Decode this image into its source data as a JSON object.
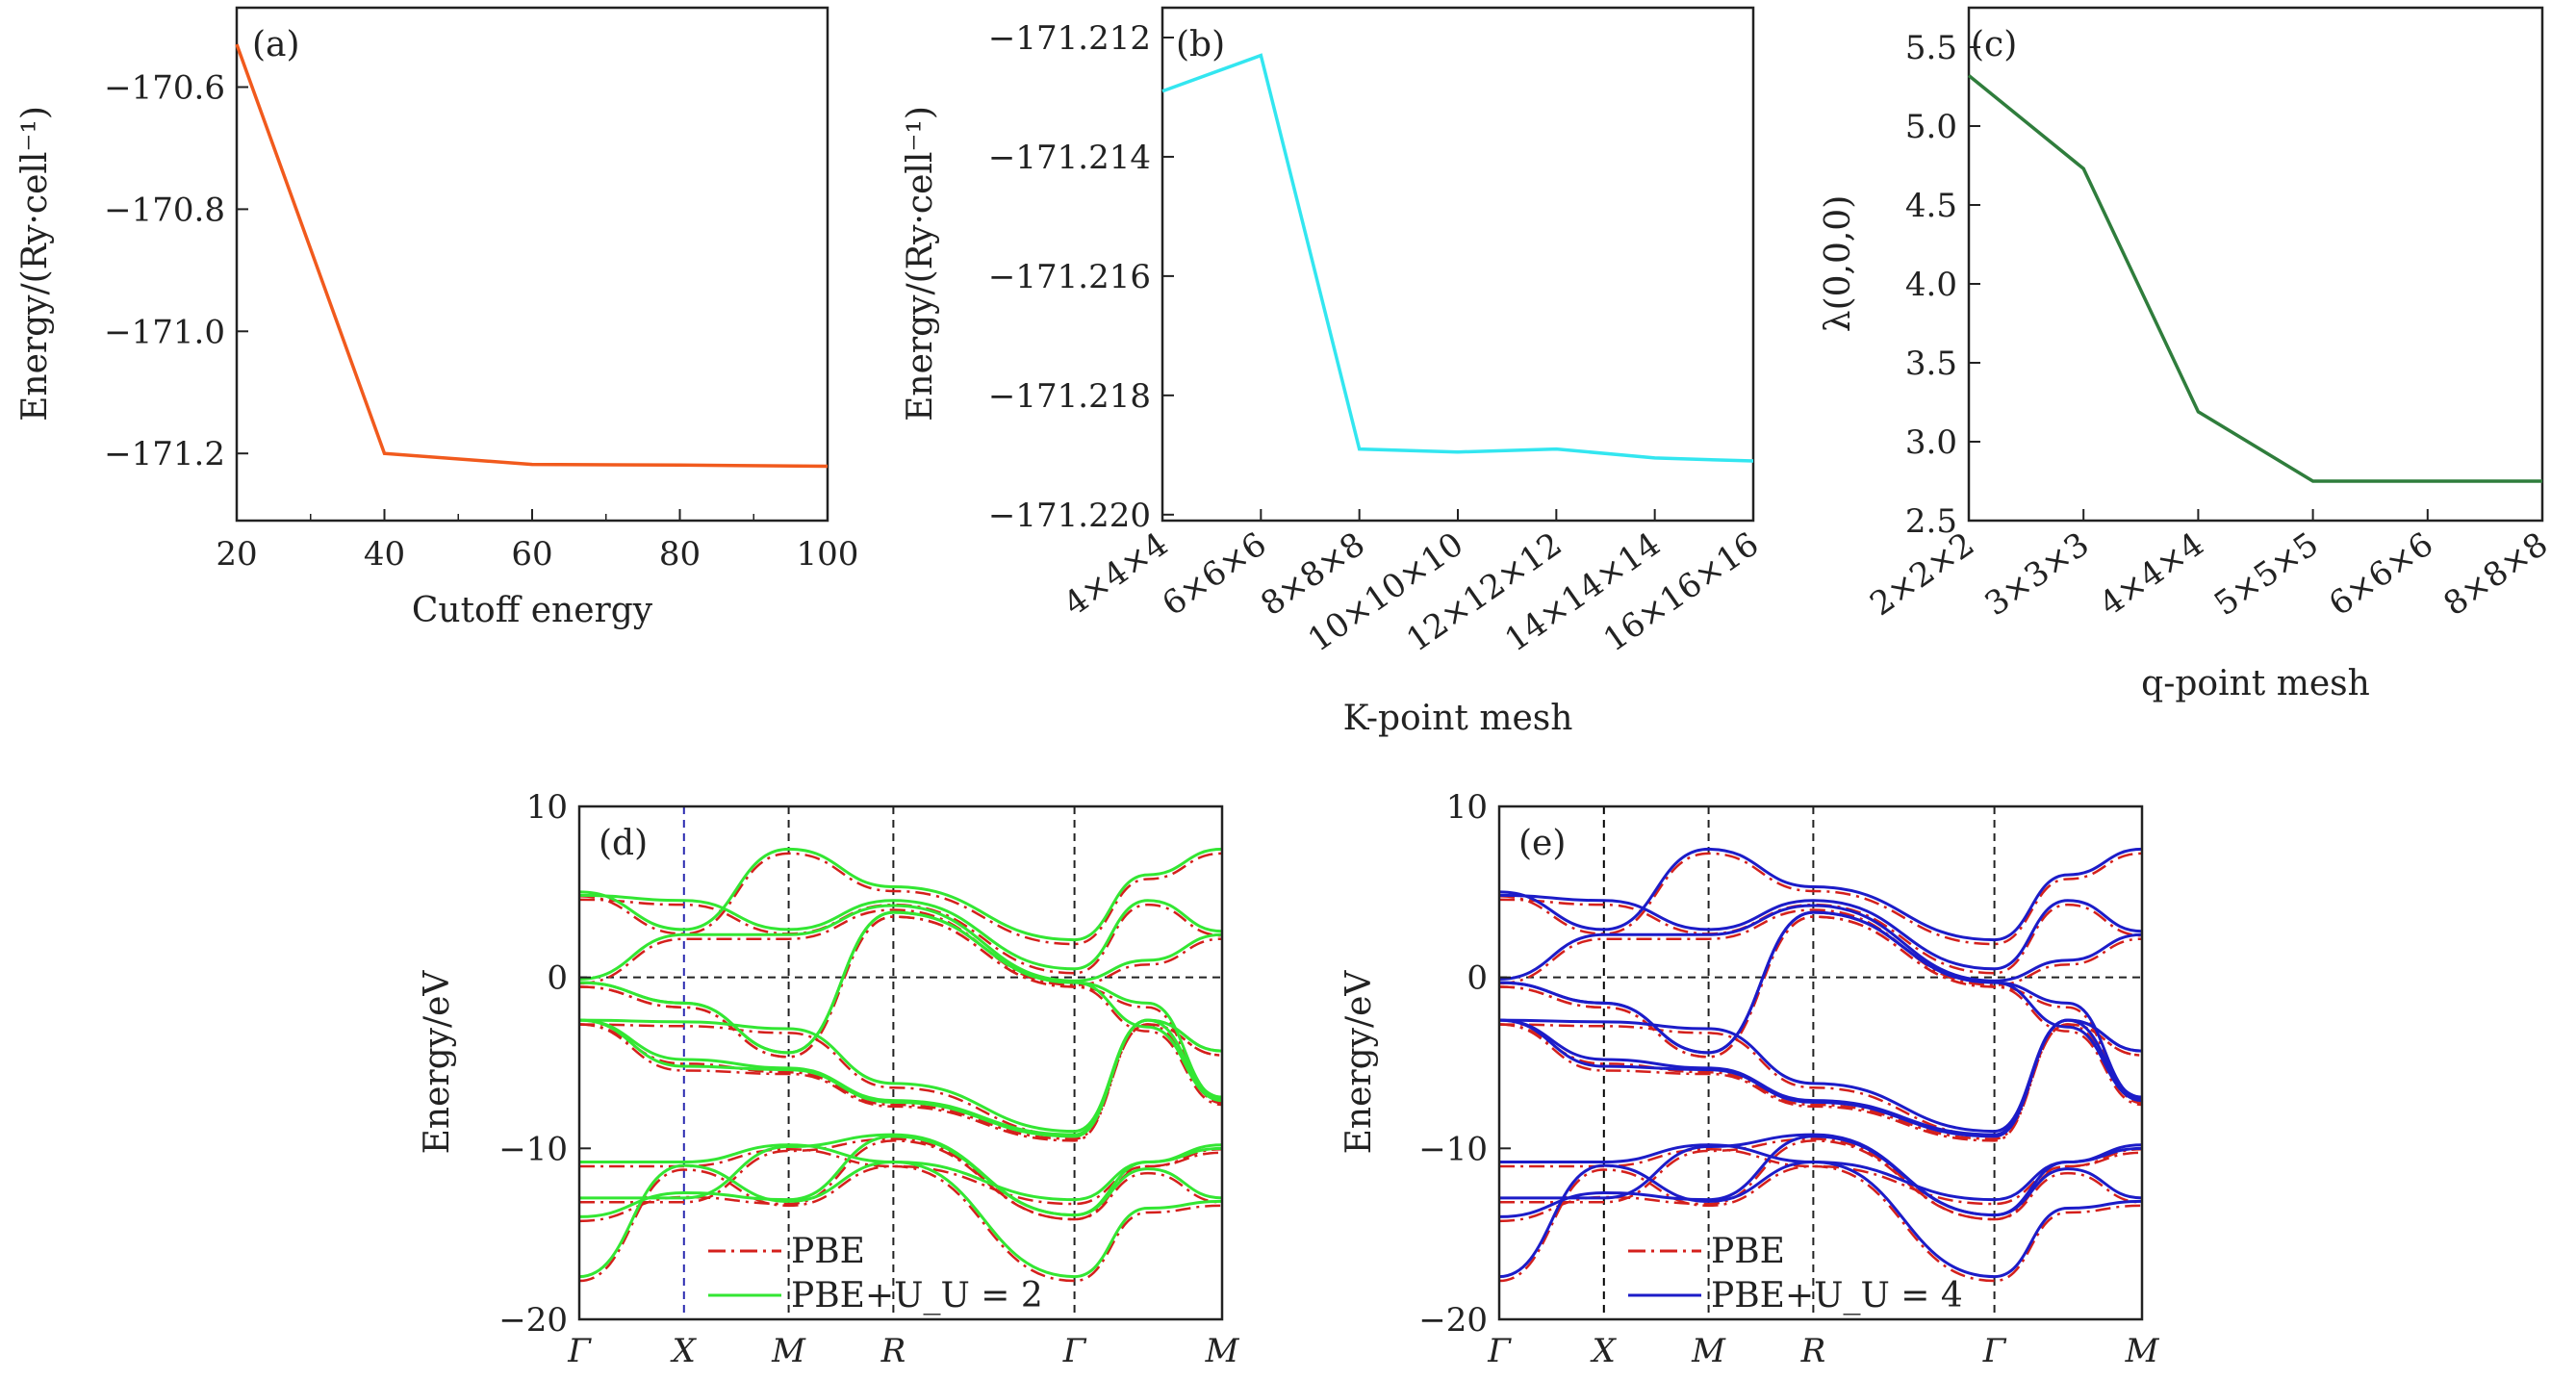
{
  "chart_data": [
    {
      "id": "a",
      "type": "line",
      "panel_label": "(a)",
      "xlabel": "Cutoff energy",
      "ylabel": "Energy/(Ry·cell⁻¹)",
      "x": [
        20,
        40,
        60,
        80,
        100
      ],
      "y": [
        -170.53,
        -171.2,
        -171.218,
        -171.219,
        -171.221
      ],
      "xlim": [
        20,
        100
      ],
      "ylim": [
        -171.31,
        -170.47
      ],
      "xticks": [
        20,
        40,
        60,
        80,
        100
      ],
      "xtick_labels": [
        "20",
        "40",
        "60",
        "80",
        "100"
      ],
      "yticks": [
        -170.6,
        -170.8,
        -171.0,
        -171.2
      ],
      "ytick_labels": [
        "−170.6",
        "−170.8",
        "−171.0",
        "−171.2"
      ],
      "color": "#f15a1d"
    },
    {
      "id": "b",
      "type": "line",
      "panel_label": "(b)",
      "xlabel": "K-point mesh",
      "ylabel": "Energy/(Ry·cell⁻¹)",
      "categories": [
        "4×4×4",
        "6×6×6",
        "8×8×8",
        "10×10×10",
        "12×12×12",
        "14×14×14",
        "16×16×16"
      ],
      "values": [
        -171.2129,
        -171.2123,
        -171.2189,
        -171.21895,
        -171.2189,
        -171.21905,
        -171.2191
      ],
      "ylim": [
        -171.2201,
        -171.2115
      ],
      "yticks": [
        -171.212,
        -171.214,
        -171.216,
        -171.218,
        -171.22
      ],
      "ytick_labels": [
        "−171.212",
        "−171.214",
        "−171.216",
        "−171.218",
        "−171.220"
      ],
      "color": "#33e6f0"
    },
    {
      "id": "c",
      "type": "line",
      "panel_label": "(c)",
      "xlabel": "q-point mesh",
      "ylabel": "λ(0,0,0)",
      "categories": [
        "2×2×2",
        "3×3×3",
        "4×4×4",
        "5×5×5",
        "6×6×6",
        "8×8×8"
      ],
      "values": [
        5.32,
        4.73,
        3.19,
        2.75,
        2.75,
        2.75
      ],
      "ylim": [
        2.5,
        5.75
      ],
      "yticks": [
        2.5,
        3.0,
        3.5,
        4.0,
        4.5,
        5.0,
        5.5
      ],
      "ytick_labels": [
        "2.5",
        "3.0",
        "3.5",
        "4.0",
        "4.5",
        "5.0",
        "5.5"
      ],
      "color": "#2f7d3c"
    },
    {
      "id": "d",
      "type": "line",
      "panel_label": "(d)",
      "ylabel": "Energy/eV",
      "ylim": [
        -20,
        10
      ],
      "yticks": [
        -20,
        -10,
        0,
        10
      ],
      "ytick_labels": [
        "−20",
        "−10",
        "0",
        "10"
      ],
      "kpath_labels": [
        "Γ",
        "X",
        "M",
        "R",
        "Γ",
        "M"
      ],
      "kpath_positions": [
        0,
        1,
        2,
        3,
        4.73,
        6.14
      ],
      "legend": [
        {
          "label": "PBE",
          "style": "dash-dot",
          "color": "#d4201c"
        },
        {
          "label": "PBE+U_U = 2",
          "style": "solid",
          "color": "#33e633"
        }
      ],
      "band_color": "#33e633",
      "pbe_color": "#d4201c",
      "first_divider_color": "#2a2ab0",
      "bands": [
        [
          -2.5,
          -2.6,
          -3.0,
          -6.2,
          -9.0,
          -2.5,
          -4.3
        ],
        [
          -2.5,
          -4.8,
          -5.3,
          -7.2,
          -9.2,
          -2.5,
          -4.3
        ],
        [
          -2.5,
          -5.2,
          -5.4,
          -7.3,
          -9.3,
          -2.5,
          -7.0
        ],
        [
          -0.3,
          -1.5,
          -4.4,
          3.8,
          -0.3,
          -1.5,
          -7.1
        ],
        [
          -0.3,
          -1.5,
          -4.4,
          3.8,
          -0.3,
          -2.9,
          -7.2
        ],
        [
          -0.1,
          2.5,
          2.5,
          4.2,
          -0.2,
          1.0,
          2.5
        ],
        [
          4.8,
          4.5,
          2.8,
          4.5,
          0.5,
          4.5,
          2.7
        ],
        [
          5.0,
          2.8,
          7.5,
          5.3,
          2.2,
          6.0,
          7.5
        ],
        [
          -10.8,
          -10.8,
          -9.8,
          -10.8,
          -13.0,
          -10.8,
          -9.8
        ],
        [
          -12.9,
          -12.9,
          -9.9,
          -9.2,
          -13.9,
          -10.8,
          -10.0
        ],
        [
          -14.0,
          -12.6,
          -13.0,
          -9.3,
          -13.9,
          -11.2,
          -12.9
        ],
        [
          -17.5,
          -11.0,
          -13.1,
          -10.8,
          -17.5,
          -13.5,
          -13.1
        ]
      ]
    },
    {
      "id": "e",
      "type": "line",
      "panel_label": "(e)",
      "ylabel": "Energy/eV",
      "ylim": [
        -20,
        10
      ],
      "yticks": [
        -20,
        -10,
        0,
        10
      ],
      "ytick_labels": [
        "−20",
        "−10",
        "0",
        "10"
      ],
      "kpath_labels": [
        "Γ",
        "X",
        "M",
        "R",
        "Γ",
        "M"
      ],
      "kpath_positions": [
        0,
        1,
        2,
        3,
        4.73,
        6.14
      ],
      "legend": [
        {
          "label": "PBE",
          "style": "dash-dot",
          "color": "#d4201c"
        },
        {
          "label": "PBE+U_U = 4",
          "style": "solid",
          "color": "#1c1cc8"
        }
      ],
      "band_color": "#1c1cc8",
      "pbe_color": "#d4201c",
      "first_divider_color": "#000000",
      "bands": [
        [
          -2.5,
          -2.6,
          -3.0,
          -6.2,
          -9.0,
          -2.5,
          -4.3
        ],
        [
          -2.5,
          -4.8,
          -5.3,
          -7.2,
          -9.2,
          -2.5,
          -4.3
        ],
        [
          -2.5,
          -5.2,
          -5.4,
          -7.3,
          -9.3,
          -2.5,
          -7.0
        ],
        [
          -0.3,
          -1.5,
          -4.4,
          3.8,
          -0.3,
          -1.5,
          -7.1
        ],
        [
          -0.3,
          -1.5,
          -4.4,
          3.8,
          -0.3,
          -2.9,
          -7.2
        ],
        [
          -0.1,
          2.5,
          2.5,
          4.2,
          -0.2,
          1.0,
          2.5
        ],
        [
          4.8,
          4.5,
          2.8,
          4.5,
          0.5,
          4.5,
          2.7
        ],
        [
          5.0,
          2.8,
          7.5,
          5.3,
          2.2,
          6.0,
          7.5
        ],
        [
          -10.8,
          -10.8,
          -9.8,
          -10.8,
          -13.0,
          -10.8,
          -9.8
        ],
        [
          -12.9,
          -12.9,
          -9.9,
          -9.2,
          -13.9,
          -10.8,
          -10.0
        ],
        [
          -14.0,
          -12.6,
          -13.0,
          -9.3,
          -13.9,
          -11.2,
          -12.9
        ],
        [
          -17.5,
          -11.0,
          -13.1,
          -10.8,
          -17.5,
          -13.5,
          -13.1
        ]
      ]
    }
  ]
}
